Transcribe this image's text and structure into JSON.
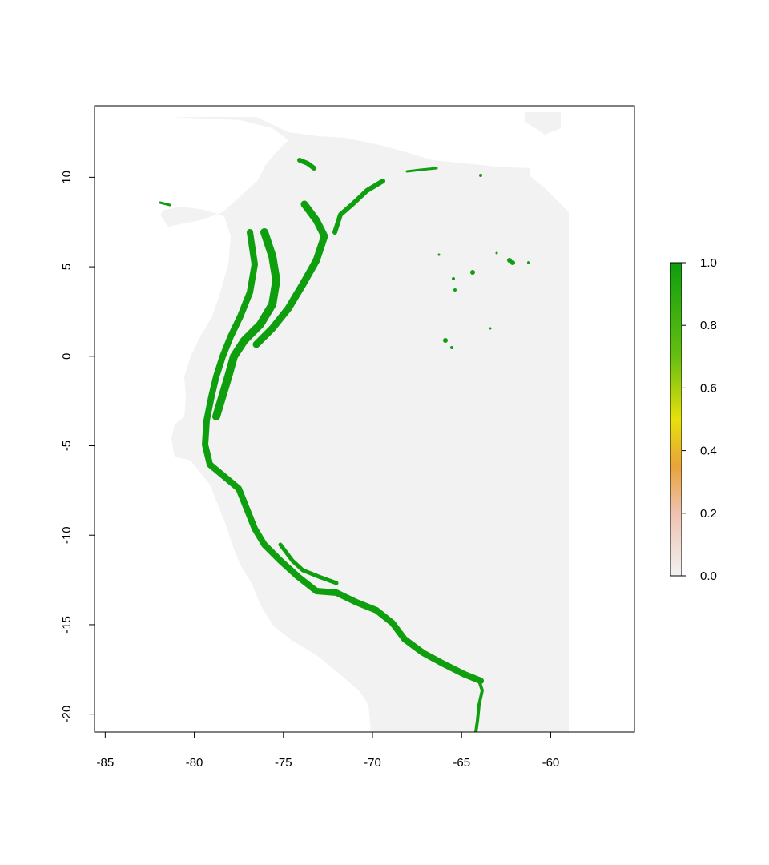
{
  "map": {
    "x_axis": {
      "ticks": [
        "-85",
        "-80",
        "-75",
        "-70",
        "-65",
        "-60"
      ],
      "tick_values": [
        -85,
        -80,
        -75,
        -70,
        -65,
        -60
      ],
      "range": [
        -85.6,
        -55.3
      ]
    },
    "y_axis": {
      "ticks": [
        "-20",
        "-15",
        "-10",
        "-5",
        "0",
        "5",
        "10"
      ],
      "tick_values": [
        -20,
        -15,
        -10,
        -5,
        0,
        5,
        10
      ],
      "range": [
        -21.0,
        14.0
      ]
    },
    "land_color": "#f2f2f2",
    "suitable_color": "#0e9e0e",
    "legend": {
      "ticks": [
        "0.0",
        "0.2",
        "0.4",
        "0.6",
        "0.8",
        "1.0"
      ],
      "tick_values": [
        0.0,
        0.2,
        0.4,
        0.6,
        0.8,
        1.0
      ],
      "gradient_stops": [
        {
          "value": 0.0,
          "color": "#f2f2f2"
        },
        {
          "value": 0.2,
          "color": "#efc2b0"
        },
        {
          "value": 0.35,
          "color": "#e8a33b"
        },
        {
          "value": 0.5,
          "color": "#e6e00c"
        },
        {
          "value": 0.7,
          "color": "#66bf12"
        },
        {
          "value": 1.0,
          "color": "#0e9e0e"
        }
      ]
    }
  }
}
